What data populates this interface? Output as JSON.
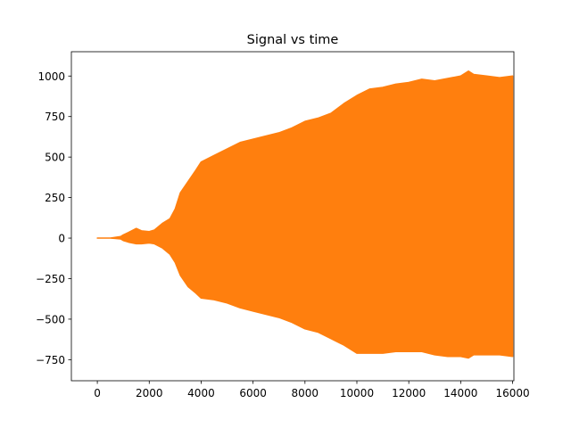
{
  "chart_data": {
    "type": "area",
    "title": "Signal vs time",
    "xlabel": "",
    "ylabel": "",
    "xlim": [
      -1000,
      16050
    ],
    "ylim": [
      -880,
      1150
    ],
    "x_ticks": [
      0,
      2000,
      4000,
      6000,
      8000,
      10000,
      12000,
      14000,
      16000
    ],
    "y_ticks": [
      -750,
      -500,
      -250,
      0,
      250,
      500,
      750,
      1000
    ],
    "grid": false,
    "legend": "none",
    "series": [
      {
        "color": "#ff7f0e",
        "x": [
          0,
          500,
          900,
          1000,
          1200,
          1500,
          1700,
          2000,
          2200,
          2500,
          2800,
          3000,
          3200,
          3500,
          3800,
          4000,
          4500,
          5000,
          5500,
          6000,
          6500,
          7000,
          7500,
          8000,
          8500,
          9000,
          9500,
          10000,
          10500,
          11000,
          11500,
          12000,
          12500,
          13000,
          13500,
          14000,
          14300,
          14500,
          15000,
          15500,
          16000
        ],
        "upper": [
          0,
          0,
          10,
          20,
          35,
          60,
          45,
          40,
          50,
          90,
          120,
          180,
          280,
          350,
          420,
          470,
          510,
          550,
          590,
          610,
          630,
          650,
          680,
          720,
          740,
          770,
          830,
          880,
          920,
          930,
          950,
          960,
          980,
          970,
          985,
          1000,
          1030,
          1010,
          1000,
          990,
          1000
        ],
        "lower": [
          0,
          0,
          -5,
          -15,
          -25,
          -35,
          -35,
          -30,
          -35,
          -60,
          -100,
          -150,
          -230,
          -300,
          -340,
          -370,
          -380,
          -400,
          -430,
          -450,
          -470,
          -490,
          -520,
          -560,
          -580,
          -620,
          -660,
          -710,
          -710,
          -710,
          -700,
          -700,
          -700,
          -720,
          -730,
          -730,
          -740,
          -720,
          -720,
          -720,
          -730
        ]
      }
    ]
  }
}
